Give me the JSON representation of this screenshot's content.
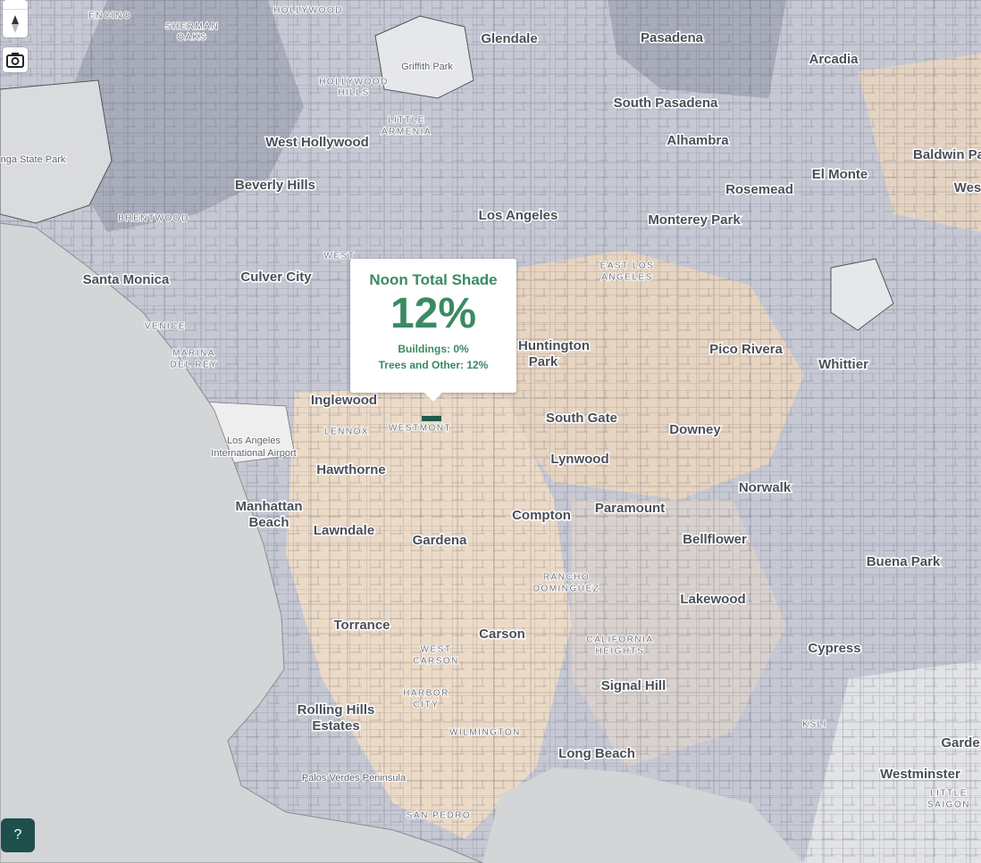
{
  "popup": {
    "title": "Noon Total Shade",
    "value": "12%",
    "lines": [
      "Buildings: 0%",
      "Trees and Other: 12%"
    ]
  },
  "places": [
    "ENCINO",
    "SHERMAN",
    "OAKS",
    "HOLLYWOOD",
    "Glendale",
    "Pasadena",
    "Griffith Park",
    "Arcadia",
    "HOLLYWOOD",
    "HILLS",
    "South Pasadena",
    "LITTLE",
    "ARMENIA",
    "Alhambra",
    "West Hollywood",
    "Baldwin Pa",
    "El Monte",
    "Beverly Hills",
    "Rosemead",
    "Wes",
    "Los Angeles",
    "BRENTWOOD",
    "Monterey Park",
    "nga State Park",
    "Santa Monica",
    "Culver City",
    "EAST LOS",
    "ANGELES",
    "Huntington",
    "Park",
    "Pico Rivera",
    "VENICE",
    "MARINA",
    "DEL REY",
    "Whittier",
    "Inglewood",
    "LENNOX",
    "WESTMONT",
    "South Gate",
    "Downey",
    "Los Angeles",
    "International Airport",
    "Hawthorne",
    "Lynwood",
    "Norwalk",
    "Manhattan",
    "Beach",
    "Paramount",
    "Compton",
    "Lawndale",
    "Gardena",
    "Bellflower",
    "Buena Park",
    "RANCHO",
    "DOMINGUEZ",
    "Lakewood",
    "Torrance",
    "Carson",
    "CALIFORNIA",
    "HEIGHTS",
    "Cypress",
    "WEST",
    "CARSON",
    "Signal Hill",
    "HARBOR",
    "CITY",
    "Rolling Hills",
    "Estates",
    "KSLI",
    "WILMINGTON",
    "Long Beach",
    "Garde",
    "Westminster",
    "Palos Verdes Peninsula",
    "LITTLE",
    "SAIGON",
    "SAN PEDRO",
    "WEST"
  ],
  "controls": {
    "help": "?"
  }
}
